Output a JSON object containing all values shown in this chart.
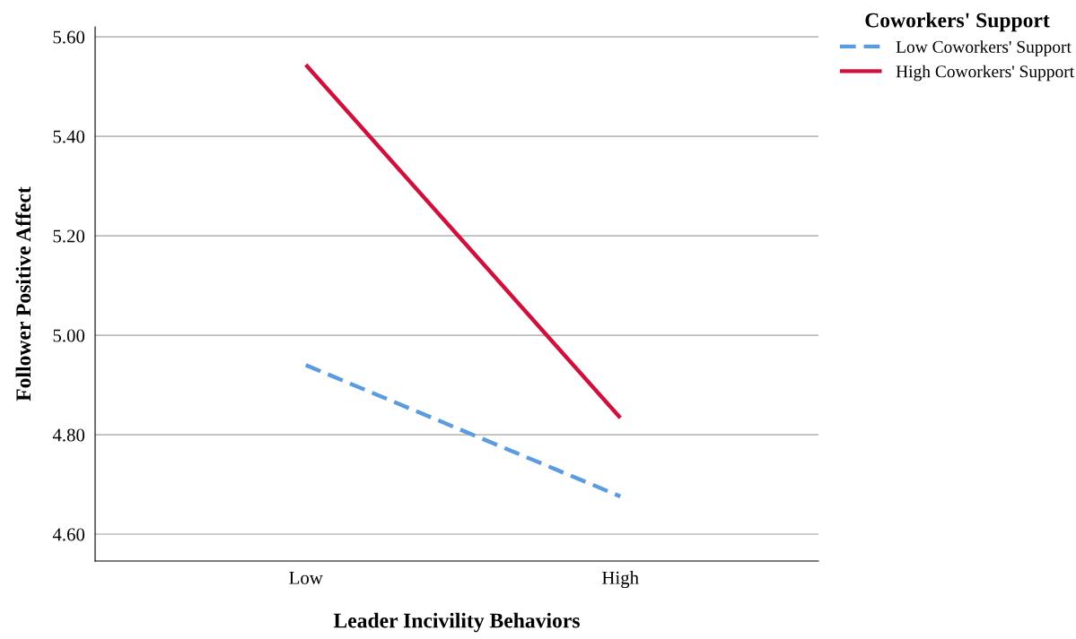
{
  "chart_data": {
    "type": "line",
    "xlabel": "Leader Incivility Behaviors",
    "ylabel": "Follower Positive Affect",
    "legend_title": "Coworkers' Support",
    "categories": [
      "Low",
      "High"
    ],
    "series": [
      {
        "name": "Low Coworkers' Support",
        "color": "#5b9be0",
        "values": [
          4.94,
          4.676
        ],
        "line_style": "dashed"
      },
      {
        "name": "High Coworkers' Support",
        "color": "#d0103a",
        "values": [
          5.544,
          4.834
        ],
        "line_style": "solid"
      }
    ],
    "ylim": [
      4.546,
      5.62
    ],
    "yticks": [
      {
        "value": 4.6,
        "label": "4.60"
      },
      {
        "value": 4.8,
        "label": "4.80"
      },
      {
        "value": 5.0,
        "label": "5.00"
      },
      {
        "value": 5.2,
        "label": "5.20"
      },
      {
        "value": 5.4,
        "label": "5.40"
      },
      {
        "value": 5.6,
        "label": "5.60"
      }
    ],
    "grid": "y",
    "legend": "top right",
    "marker": "none"
  }
}
